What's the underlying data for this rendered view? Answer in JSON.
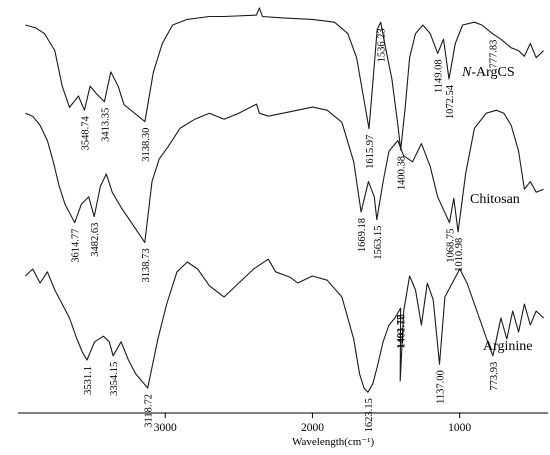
{
  "chart_data": {
    "type": "line",
    "xlabel": "Wavelength(cm⁻¹)",
    "xlim": [
      4000,
      400
    ],
    "x_reversed": true,
    "x_ticks": [
      3000,
      2000,
      1000
    ],
    "x_tick_labels": [
      "3000",
      "2000",
      "1000"
    ],
    "ylabel": "",
    "grid": false,
    "series": [
      {
        "name": "N-ArgCS",
        "name_prefix": "N",
        "name_rest": "-ArgCS",
        "points": [
          [
            3950,
            0.12
          ],
          [
            3880,
            0.14
          ],
          [
            3820,
            0.18
          ],
          [
            3750,
            0.3
          ],
          [
            3700,
            0.55
          ],
          [
            3650,
            0.7
          ],
          [
            3590,
            0.62
          ],
          [
            3548.74,
            0.72
          ],
          [
            3510,
            0.55
          ],
          [
            3470,
            0.6
          ],
          [
            3413.35,
            0.66
          ],
          [
            3370,
            0.45
          ],
          [
            3320,
            0.55
          ],
          [
            3280,
            0.68
          ],
          [
            3138.3,
            0.8
          ],
          [
            3080,
            0.45
          ],
          [
            3020,
            0.25
          ],
          [
            2950,
            0.12
          ],
          [
            2850,
            0.08
          ],
          [
            2700,
            0.06
          ],
          [
            2600,
            0.06
          ],
          [
            2380,
            0.05
          ],
          [
            2360,
            0.0
          ],
          [
            2340,
            0.06
          ],
          [
            2200,
            0.07
          ],
          [
            2000,
            0.08
          ],
          [
            1850,
            0.1
          ],
          [
            1760,
            0.18
          ],
          [
            1700,
            0.35
          ],
          [
            1615.97,
            0.85
          ],
          [
            1580,
            0.4
          ],
          [
            1560,
            0.15
          ],
          [
            1536.23,
            0.1
          ],
          [
            1500,
            0.3
          ],
          [
            1460,
            0.5
          ],
          [
            1420,
            0.82
          ],
          [
            1400.38,
            1.0
          ],
          [
            1370,
            0.7
          ],
          [
            1340,
            0.35
          ],
          [
            1300,
            0.18
          ],
          [
            1250,
            0.12
          ],
          [
            1200,
            0.18
          ],
          [
            1149.08,
            0.32
          ],
          [
            1110,
            0.22
          ],
          [
            1072.54,
            0.5
          ],
          [
            1030,
            0.25
          ],
          [
            980,
            0.12
          ],
          [
            900,
            0.1
          ],
          [
            850,
            0.12
          ],
          [
            777.83,
            0.18
          ],
          [
            720,
            0.22
          ],
          [
            650,
            0.28
          ],
          [
            600,
            0.3
          ],
          [
            560,
            0.34
          ],
          [
            520,
            0.25
          ],
          [
            480,
            0.35
          ],
          [
            430,
            0.3
          ]
        ]
      },
      {
        "name": "Chitosan",
        "points": [
          [
            3950,
            0.1
          ],
          [
            3900,
            0.12
          ],
          [
            3850,
            0.18
          ],
          [
            3800,
            0.28
          ],
          [
            3760,
            0.42
          ],
          [
            3720,
            0.58
          ],
          [
            3680,
            0.7
          ],
          [
            3614.77,
            0.82
          ],
          [
            3570,
            0.7
          ],
          [
            3520,
            0.65
          ],
          [
            3482.63,
            0.78
          ],
          [
            3440,
            0.58
          ],
          [
            3400,
            0.5
          ],
          [
            3360,
            0.62
          ],
          [
            3300,
            0.72
          ],
          [
            3138.73,
            0.95
          ],
          [
            3090,
            0.55
          ],
          [
            3040,
            0.4
          ],
          [
            2980,
            0.32
          ],
          [
            2900,
            0.2
          ],
          [
            2800,
            0.14
          ],
          [
            2700,
            0.1
          ],
          [
            2600,
            0.14
          ],
          [
            2500,
            0.1
          ],
          [
            2380,
            0.04
          ],
          [
            2360,
            0.1
          ],
          [
            2300,
            0.12
          ],
          [
            2200,
            0.1
          ],
          [
            2100,
            0.08
          ],
          [
            2000,
            0.06
          ],
          [
            1900,
            0.08
          ],
          [
            1800,
            0.16
          ],
          [
            1720,
            0.42
          ],
          [
            1669.18,
            0.75
          ],
          [
            1620,
            0.55
          ],
          [
            1580,
            0.65
          ],
          [
            1563.15,
            0.8
          ],
          [
            1520,
            0.55
          ],
          [
            1480,
            0.35
          ],
          [
            1420,
            0.28
          ],
          [
            1380,
            0.38
          ],
          [
            1320,
            0.42
          ],
          [
            1260,
            0.3
          ],
          [
            1200,
            0.45
          ],
          [
            1150,
            0.65
          ],
          [
            1068.75,
            0.82
          ],
          [
            1040,
            0.66
          ],
          [
            1010.98,
            0.88
          ],
          [
            960,
            0.5
          ],
          [
            900,
            0.2
          ],
          [
            820,
            0.1
          ],
          [
            750,
            0.08
          ],
          [
            700,
            0.1
          ],
          [
            650,
            0.18
          ],
          [
            600,
            0.35
          ],
          [
            560,
            0.6
          ],
          [
            520,
            0.55
          ],
          [
            480,
            0.62
          ],
          [
            430,
            0.6
          ]
        ]
      },
      {
        "name": "Arginine",
        "points": [
          [
            3950,
            0.15
          ],
          [
            3900,
            0.1
          ],
          [
            3850,
            0.2
          ],
          [
            3800,
            0.12
          ],
          [
            3750,
            0.25
          ],
          [
            3700,
            0.35
          ],
          [
            3650,
            0.45
          ],
          [
            3600,
            0.6
          ],
          [
            3560,
            0.7
          ],
          [
            3531.1,
            0.75
          ],
          [
            3480,
            0.62
          ],
          [
            3420,
            0.58
          ],
          [
            3380,
            0.62
          ],
          [
            3354.15,
            0.72
          ],
          [
            3300,
            0.62
          ],
          [
            3250,
            0.75
          ],
          [
            3200,
            0.85
          ],
          [
            3118.72,
            0.95
          ],
          [
            3050,
            0.6
          ],
          [
            2990,
            0.35
          ],
          [
            2920,
            0.12
          ],
          [
            2850,
            0.05
          ],
          [
            2780,
            0.1
          ],
          [
            2700,
            0.22
          ],
          [
            2600,
            0.3
          ],
          [
            2500,
            0.2
          ],
          [
            2400,
            0.1
          ],
          [
            2300,
            0.03
          ],
          [
            2250,
            0.12
          ],
          [
            2150,
            0.16
          ],
          [
            2100,
            0.2
          ],
          [
            2000,
            0.15
          ],
          [
            1900,
            0.18
          ],
          [
            1800,
            0.3
          ],
          [
            1720,
            0.6
          ],
          [
            1680,
            0.85
          ],
          [
            1650,
            0.95
          ],
          [
            1623.15,
            0.98
          ],
          [
            1590,
            0.92
          ],
          [
            1560,
            0.8
          ],
          [
            1520,
            0.62
          ],
          [
            1480,
            0.5
          ],
          [
            1440,
            0.45
          ],
          [
            1401.18,
            0.38
          ],
          [
            1403.77,
            0.9
          ],
          [
            1380,
            0.4
          ],
          [
            1340,
            0.15
          ],
          [
            1300,
            0.25
          ],
          [
            1260,
            0.5
          ],
          [
            1220,
            0.2
          ],
          [
            1180,
            0.32
          ],
          [
            1137.0,
            0.78
          ],
          [
            1100,
            0.3
          ],
          [
            1050,
            0.2
          ],
          [
            1000,
            0.1
          ],
          [
            950,
            0.2
          ],
          [
            900,
            0.35
          ],
          [
            850,
            0.5
          ],
          [
            800,
            0.65
          ],
          [
            773.93,
            0.72
          ],
          [
            720,
            0.45
          ],
          [
            680,
            0.6
          ],
          [
            640,
            0.4
          ],
          [
            600,
            0.55
          ],
          [
            560,
            0.35
          ],
          [
            520,
            0.5
          ],
          [
            480,
            0.4
          ],
          [
            430,
            0.45
          ]
        ]
      }
    ],
    "annotations": [
      {
        "series": "N-ArgCS",
        "label": "3548.74",
        "x": 3548.74
      },
      {
        "series": "N-ArgCS",
        "label": "3413.35",
        "x": 3413.35
      },
      {
        "series": "N-ArgCS",
        "label": "3138.30",
        "x": 3138.3
      },
      {
        "series": "N-ArgCS",
        "label": "1615.97",
        "x": 1615.97
      },
      {
        "series": "N-ArgCS",
        "label": "1536.23",
        "x": 1536.23
      },
      {
        "series": "N-ArgCS",
        "label": "1400.38",
        "x": 1400.38
      },
      {
        "series": "N-ArgCS",
        "label": "1149.08",
        "x": 1149.08
      },
      {
        "series": "N-ArgCS",
        "label": "1072.54",
        "x": 1072.54
      },
      {
        "series": "N-ArgCS",
        "label": "777.83",
        "x": 777.83
      },
      {
        "series": "Chitosan",
        "label": "3614.77",
        "x": 3614.77
      },
      {
        "series": "Chitosan",
        "label": "3482.63",
        "x": 3482.63
      },
      {
        "series": "Chitosan",
        "label": "3138.73",
        "x": 3138.73
      },
      {
        "series": "Chitosan",
        "label": "1669.18",
        "x": 1669.18
      },
      {
        "series": "Chitosan",
        "label": "1563.15",
        "x": 1563.15
      },
      {
        "series": "Chitosan",
        "label": "1068.75",
        "x": 1068.75
      },
      {
        "series": "Chitosan",
        "label": "1010.98",
        "x": 1010.98
      },
      {
        "series": "Arginine",
        "label": "3531.1",
        "x": 3531.1
      },
      {
        "series": "Arginine",
        "label": "3354.15",
        "x": 3354.15
      },
      {
        "series": "Arginine",
        "label": "3118.72",
        "x": 3118.72
      },
      {
        "series": "Arginine",
        "label": "1623.15",
        "x": 1623.15
      },
      {
        "series": "Arginine",
        "label": "1401.18",
        "x": 1401.18
      },
      {
        "series": "Arginine",
        "label": "1403.77",
        "x": 1403.77
      },
      {
        "series": "Arginine",
        "label": "1137.00",
        "x": 1137.0
      },
      {
        "series": "Arginine",
        "label": "773.93",
        "x": 773.93
      }
    ]
  }
}
